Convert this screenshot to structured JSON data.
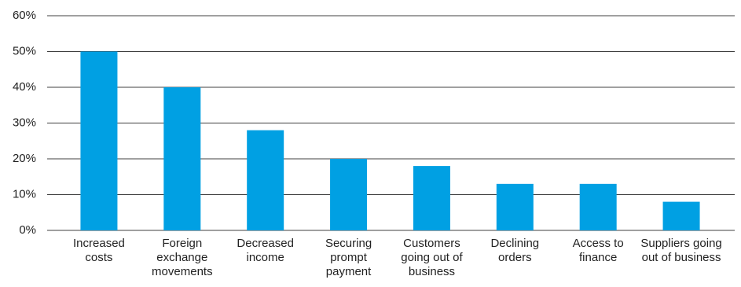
{
  "chart_data": {
    "type": "bar",
    "categories": [
      "Increased costs",
      "Foreign exchange movements",
      "Decreased income",
      "Securing prompt payment",
      "Customers going out of business",
      "Declining orders",
      "Access to finance",
      "Suppliers going out of business"
    ],
    "values": [
      50,
      40,
      28,
      20,
      18,
      13,
      13,
      8
    ],
    "color": "#00a0e3",
    "ylim": [
      0,
      60
    ],
    "yticks": [
      {
        "value": 0,
        "label": "0%"
      },
      {
        "value": 10,
        "label": "10%"
      },
      {
        "value": 20,
        "label": "20%"
      },
      {
        "value": 30,
        "label": "30%"
      },
      {
        "value": 40,
        "label": "40%"
      },
      {
        "value": 50,
        "label": "50%"
      },
      {
        "value": 60,
        "label": "60%"
      }
    ],
    "grid": true
  }
}
